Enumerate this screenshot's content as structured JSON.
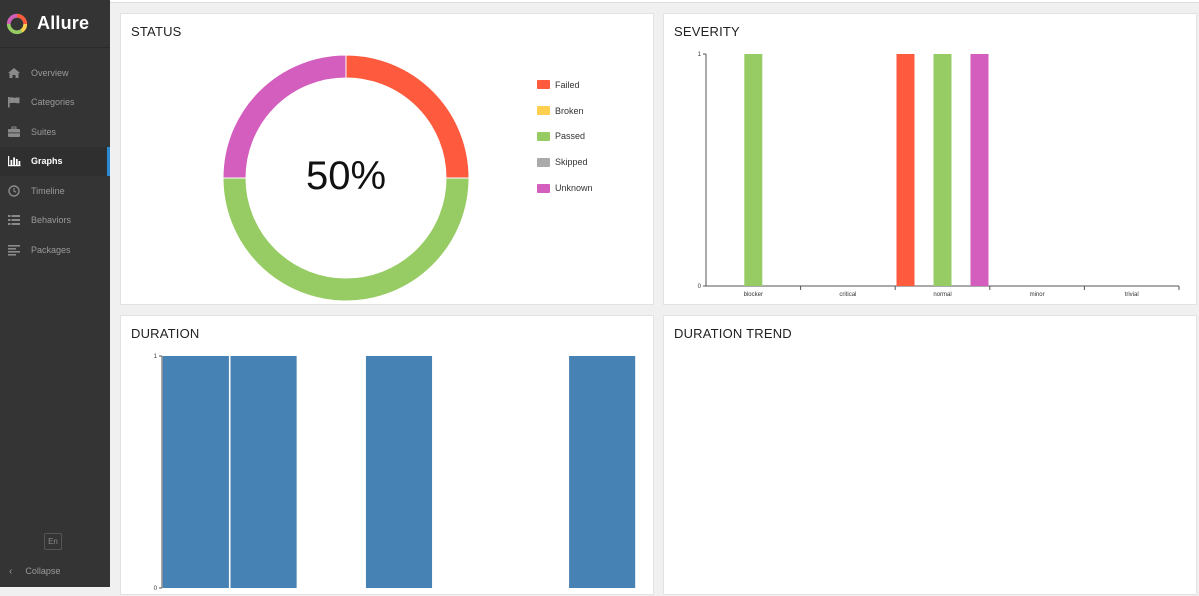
{
  "sidebar": {
    "brand": "Allure",
    "items": [
      {
        "label": "Overview",
        "icon": "home-icon"
      },
      {
        "label": "Categories",
        "icon": "flag-icon"
      },
      {
        "label": "Suites",
        "icon": "briefcase-icon"
      },
      {
        "label": "Graphs",
        "icon": "bar-chart-icon",
        "active": true
      },
      {
        "label": "Timeline",
        "icon": "clock-icon"
      },
      {
        "label": "Behaviors",
        "icon": "list-icon"
      },
      {
        "label": "Packages",
        "icon": "align-left-icon"
      }
    ],
    "language": "En",
    "collapse_label": "Collapse"
  },
  "colors": {
    "failed": "#fd5a3e",
    "broken": "#ffd050",
    "passed": "#97cc64",
    "skipped": "#aaaaaa",
    "unknown": "#d35ebe",
    "duration": "#4682b4"
  },
  "status": {
    "title": "STATUS",
    "center_text": "50%",
    "legend": [
      "Failed",
      "Broken",
      "Passed",
      "Skipped",
      "Unknown"
    ]
  },
  "severity": {
    "title": "SEVERITY"
  },
  "duration": {
    "title": "DURATION"
  },
  "trend": {
    "title": "DURATION TREND"
  },
  "chart_data": [
    {
      "type": "pie",
      "name": "status",
      "categories": [
        "Failed",
        "Broken",
        "Passed",
        "Skipped",
        "Unknown"
      ],
      "values": [
        1,
        0,
        2,
        0,
        1
      ],
      "center_label": "50%",
      "legend_position": "right"
    },
    {
      "type": "bar",
      "name": "severity",
      "categories": [
        "blocker",
        "critical",
        "normal",
        "minor",
        "trivial"
      ],
      "series": [
        {
          "name": "Failed",
          "values": [
            0,
            0,
            1,
            0,
            0
          ]
        },
        {
          "name": "Broken",
          "values": [
            0,
            0,
            0,
            0,
            0
          ]
        },
        {
          "name": "Passed",
          "values": [
            1,
            0,
            1,
            0,
            0
          ]
        },
        {
          "name": "Skipped",
          "values": [
            0,
            0,
            0,
            0,
            0
          ]
        },
        {
          "name": "Unknown",
          "values": [
            0,
            0,
            1,
            0,
            0
          ]
        }
      ],
      "yticks": [
        "0",
        "1"
      ],
      "ylim": [
        0,
        1
      ]
    },
    {
      "type": "bar",
      "name": "duration",
      "values": [
        1,
        1,
        0,
        1,
        0,
        0,
        1
      ],
      "yticks": [
        "0",
        "1"
      ],
      "ylim": [
        0,
        1
      ]
    }
  ]
}
